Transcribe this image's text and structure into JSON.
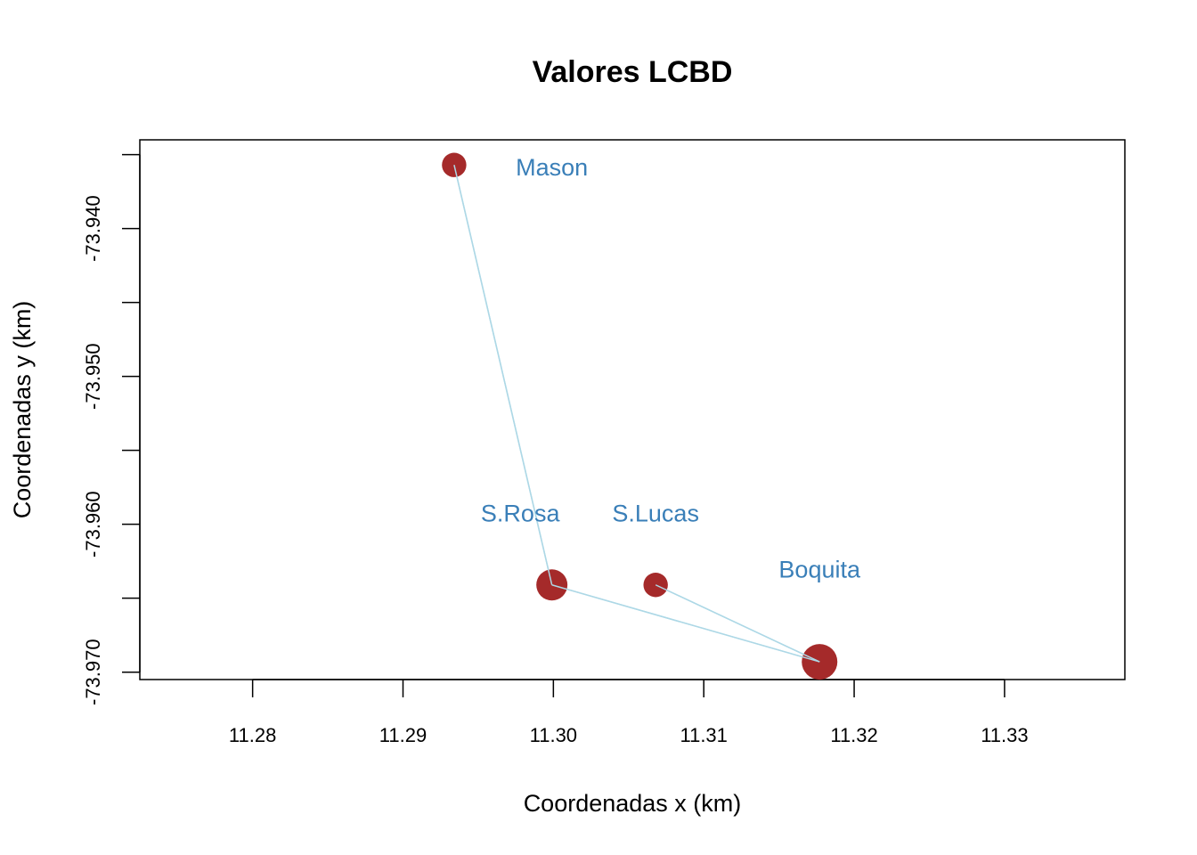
{
  "chart_data": {
    "type": "scatter",
    "title": "Valores LCBD",
    "xlabel": "Coordenadas x (km)",
    "ylabel": "Coordenadas y (km)",
    "xlim": [
      11.2725,
      11.338
    ],
    "ylim": [
      -73.9705,
      -73.934
    ],
    "xticks": [
      11.28,
      11.29,
      11.3,
      11.31,
      11.32,
      11.33
    ],
    "xtick_labels": [
      "11.28",
      "11.29",
      "11.30",
      "11.31",
      "11.32",
      "11.33"
    ],
    "yticks": [
      -73.935,
      -73.94,
      -73.945,
      -73.95,
      -73.955,
      -73.96,
      -73.965,
      -73.97
    ],
    "ytick_labels": [
      "-73.940",
      "-73.950",
      "-73.960",
      "-73.970"
    ],
    "ytick_labeled_values": [
      -73.94,
      -73.95,
      -73.96,
      -73.97
    ],
    "points": [
      {
        "x": 11.2934,
        "y": -73.9357,
        "size": 0.55
      },
      {
        "x": 11.2999,
        "y": -73.9641,
        "size": 0.82
      },
      {
        "x": 11.3068,
        "y": -73.9641,
        "size": 0.55
      },
      {
        "x": 11.3177,
        "y": -73.9693,
        "size": 1.0
      }
    ],
    "site_labels": [
      {
        "text": "Mason",
        "x": 11.2999,
        "y": -73.9358
      },
      {
        "text": "S.Rosa",
        "x": 11.2978,
        "y": -73.9592
      },
      {
        "text": "S.Lucas",
        "x": 11.3068,
        "y": -73.9592
      },
      {
        "text": "Boquita",
        "x": 11.3177,
        "y": -73.963
      }
    ],
    "edges": [
      [
        0,
        1
      ],
      [
        1,
        3
      ],
      [
        2,
        3
      ]
    ],
    "grid": false,
    "colors": {
      "points": "#a52a2a",
      "edges": "#add8e6",
      "labels": "#3a7fb8",
      "axes": "#000000"
    }
  }
}
